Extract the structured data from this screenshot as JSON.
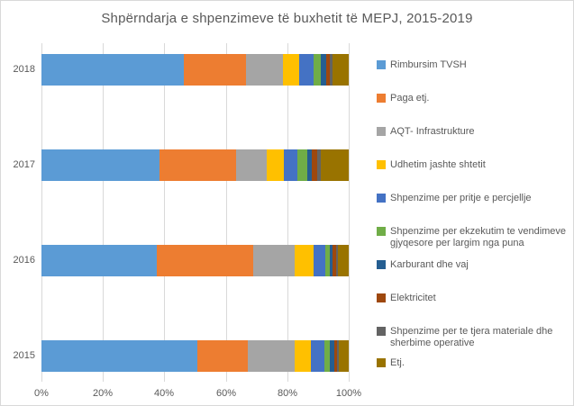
{
  "title": "Shpërndarja e shpenzimeve të buxhetit të MEPJ, 2015-2019",
  "colors": {
    "background": "#FFFFFF",
    "border": "#D9D9D9",
    "grid": "#D9D9D9",
    "axis_text": "#595959",
    "title_text": "#595959"
  },
  "chart_data": {
    "type": "bar",
    "orientation": "horizontal",
    "stacked": true,
    "unit": "percent",
    "title": "Shpërndarja e shpenzimeve të buxhetit të MEPJ, 2015-2019",
    "xlabel": "",
    "ylabel": "",
    "xlim": [
      0,
      100
    ],
    "grid": true,
    "legend_position": "right",
    "x_ticks": [
      "0%",
      "20%",
      "40%",
      "60%",
      "80%",
      "100%"
    ],
    "categories": [
      "2018",
      "2017",
      "2016",
      "2015"
    ],
    "series": [
      {
        "name": "Rimbursim TVSH",
        "color": "#5B9BD5",
        "values": [
          46.3,
          38.5,
          37.5,
          50.6
        ]
      },
      {
        "name": "Paga etj.",
        "color": "#ED7D31",
        "values": [
          20.2,
          24.9,
          31.4,
          16.6
        ]
      },
      {
        "name": "AQT- Infrastrukture",
        "color": "#A5A5A5",
        "values": [
          12.1,
          10.0,
          13.4,
          15.2
        ]
      },
      {
        "name": "Udhetim jashte shtetit",
        "color": "#FFC000",
        "values": [
          5.3,
          5.5,
          6.2,
          5.3
        ]
      },
      {
        "name": "Shpenzime per pritje e percjellje",
        "color": "#4472C4",
        "values": [
          4.7,
          4.5,
          3.9,
          4.5
        ]
      },
      {
        "name": "Shpenzime per ekzekutim te vendimeve gjyqesore per largim nga puna",
        "color": "#70AD47",
        "values": [
          2.4,
          3.0,
          1.5,
          1.8
        ]
      },
      {
        "name": "Karburant dhe vaj",
        "color": "#255E91",
        "values": [
          1.7,
          1.7,
          0.9,
          1.2
        ]
      },
      {
        "name": "Elektricitet",
        "color": "#9E480E",
        "values": [
          1.3,
          1.6,
          1.2,
          1.0
        ]
      },
      {
        "name": "Shpenzime per te tjera materiale dhe sherbime operative",
        "color": "#636363",
        "values": [
          0.6,
          1.3,
          0.6,
          0.5
        ]
      },
      {
        "name": "Etj.",
        "color": "#997300",
        "values": [
          5.4,
          9.0,
          3.4,
          3.3
        ]
      }
    ]
  },
  "layout_hints": {
    "bar_row_tops": [
      12,
      118,
      224,
      330
    ],
    "legend_item_tops": [
      65,
      102,
      139,
      176,
      213,
      250,
      287,
      324,
      361,
      396
    ]
  }
}
